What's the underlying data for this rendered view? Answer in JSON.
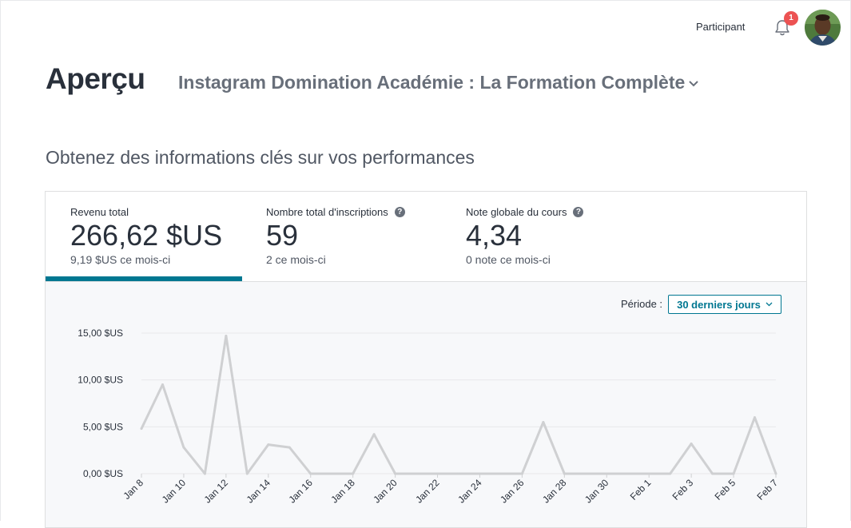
{
  "header": {
    "participant_label": "Participant",
    "notification_count": "1"
  },
  "page": {
    "title": "Aperçu",
    "course_name": "Instagram Domination Académie : La Formation Complète",
    "subtitle": "Obtenez des informations clés sur vos performances"
  },
  "tabs": [
    {
      "label": "Revenu total",
      "value": "266,62 $US",
      "sub": "9,19 $US ce mois-ci",
      "active": true,
      "help": false
    },
    {
      "label": "Nombre total d'inscriptions",
      "value": "59",
      "sub": "2 ce mois-ci",
      "active": false,
      "help": true
    },
    {
      "label": "Note globale du cours",
      "value": "4,34",
      "sub": "0 note ce mois-ci",
      "active": false,
      "help": true
    }
  ],
  "period": {
    "label": "Période :",
    "selected": "30 derniers jours"
  },
  "colors": {
    "accent": "#007791",
    "badge": "#ec5252",
    "line": "#cfd0d2",
    "grid": "#e8e9eb"
  },
  "chart_data": {
    "type": "line",
    "title": "",
    "xlabel": "",
    "ylabel": "",
    "ylim": [
      0,
      15
    ],
    "yticks": [
      "0,00 $US",
      "5,00 $US",
      "10,00 $US",
      "15,00 $US"
    ],
    "ytick_values": [
      0,
      5,
      10,
      15
    ],
    "x": [
      "Jan 8",
      "Jan 9",
      "Jan 10",
      "Jan 11",
      "Jan 12",
      "Jan 13",
      "Jan 14",
      "Jan 15",
      "Jan 16",
      "Jan 17",
      "Jan 18",
      "Jan 19",
      "Jan 20",
      "Jan 21",
      "Jan 22",
      "Jan 23",
      "Jan 24",
      "Jan 25",
      "Jan 26",
      "Jan 27",
      "Jan 28",
      "Jan 29",
      "Jan 30",
      "Jan 31",
      "Feb 1",
      "Feb 2",
      "Feb 3",
      "Feb 4",
      "Feb 5",
      "Feb 6",
      "Feb 7"
    ],
    "xtick_labels": [
      "Jan 8",
      "Jan 10",
      "Jan 12",
      "Jan 14",
      "Jan 16",
      "Jan 18",
      "Jan 20",
      "Jan 22",
      "Jan 24",
      "Jan 26",
      "Jan 28",
      "Jan 30",
      "Feb 1",
      "Feb 3",
      "Feb 5",
      "Feb 7"
    ],
    "series": [
      {
        "values": [
          4.8,
          9.5,
          2.8,
          0,
          14.7,
          0,
          3.1,
          2.8,
          0,
          0,
          0,
          4.2,
          0,
          0,
          0,
          0,
          0,
          0,
          0,
          5.5,
          0,
          0,
          0,
          0,
          0,
          0,
          3.2,
          0,
          0,
          6.0,
          0
        ]
      }
    ],
    "grid": true,
    "legend": "none"
  }
}
